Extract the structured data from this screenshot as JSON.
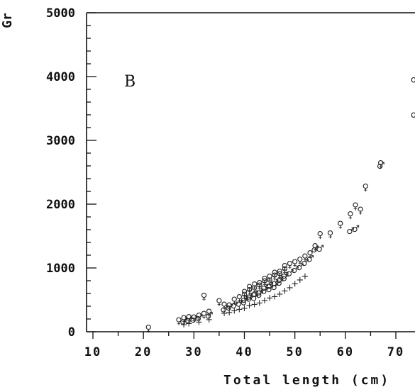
{
  "chart_data": {
    "type": "scatter",
    "panel_label": "B",
    "ylabel": "Gr",
    "xlabel": "Total length (cm)",
    "xlim": [
      10,
      74
    ],
    "ylim": [
      0,
      5000
    ],
    "x_ticks": [
      10,
      20,
      30,
      40,
      50,
      60,
      70
    ],
    "y_ticks": [
      0,
      1000,
      2000,
      3000,
      4000,
      5000
    ],
    "x_tick_labels": [
      "10",
      "20",
      "30",
      "40",
      "50",
      "60",
      "70"
    ],
    "y_tick_labels": [
      "0",
      "1000",
      "2000",
      "3000",
      "4000",
      "5000"
    ],
    "grid": false,
    "series": [
      {
        "name": "♀",
        "marker": "♀",
        "points": [
          [
            21,
            60
          ],
          [
            27,
            180
          ],
          [
            28,
            210
          ],
          [
            29,
            230
          ],
          [
            30,
            220
          ],
          [
            31,
            250
          ],
          [
            32,
            560
          ],
          [
            32,
            280
          ],
          [
            33,
            310
          ],
          [
            35,
            480
          ],
          [
            36,
            420
          ],
          [
            37,
            410
          ],
          [
            38,
            500
          ],
          [
            39,
            540
          ],
          [
            40,
            580
          ],
          [
            40,
            620
          ],
          [
            41,
            650
          ],
          [
            41,
            700
          ],
          [
            42,
            680
          ],
          [
            42,
            740
          ],
          [
            43,
            720
          ],
          [
            43,
            760
          ],
          [
            44,
            790
          ],
          [
            44,
            830
          ],
          [
            45,
            800
          ],
          [
            45,
            860
          ],
          [
            46,
            880
          ],
          [
            46,
            920
          ],
          [
            47,
            940
          ],
          [
            47,
            900
          ],
          [
            48,
            980
          ],
          [
            48,
            1030
          ],
          [
            49,
            1060
          ],
          [
            50,
            1090
          ],
          [
            51,
            1130
          ],
          [
            52,
            1180
          ],
          [
            53,
            1230
          ],
          [
            54,
            1340
          ],
          [
            55,
            1530
          ],
          [
            57,
            1540
          ],
          [
            59,
            1690
          ],
          [
            61,
            1840
          ],
          [
            62,
            1980
          ],
          [
            63,
            1910
          ],
          [
            64,
            2270
          ],
          [
            67,
            2640
          ]
        ]
      },
      {
        "name": "♂",
        "marker": "♂",
        "points": [
          [
            28,
            170
          ],
          [
            29,
            190
          ],
          [
            30,
            200
          ],
          [
            31,
            220
          ],
          [
            33,
            260
          ],
          [
            36,
            360
          ],
          [
            37,
            390
          ],
          [
            38,
            420
          ],
          [
            39,
            450
          ],
          [
            40,
            470
          ],
          [
            40,
            510
          ],
          [
            41,
            530
          ],
          [
            41,
            560
          ],
          [
            42,
            540
          ],
          [
            42,
            600
          ],
          [
            43,
            590
          ],
          [
            43,
            630
          ],
          [
            44,
            650
          ],
          [
            44,
            700
          ],
          [
            45,
            680
          ],
          [
            45,
            730
          ],
          [
            46,
            710
          ],
          [
            46,
            770
          ],
          [
            47,
            780
          ],
          [
            47,
            820
          ],
          [
            48,
            850
          ],
          [
            48,
            890
          ],
          [
            49,
            930
          ],
          [
            50,
            980
          ],
          [
            51,
            1020
          ],
          [
            52,
            1090
          ],
          [
            53,
            1150
          ],
          [
            54,
            1300
          ],
          [
            55,
            1310
          ],
          [
            61,
            1590
          ],
          [
            62,
            1620
          ],
          [
            67,
            2610
          ]
        ]
      },
      {
        "name": "+",
        "marker": "+",
        "points": [
          [
            28,
            120
          ],
          [
            29,
            140
          ],
          [
            31,
            160
          ],
          [
            33,
            200
          ],
          [
            36,
            300
          ],
          [
            37,
            310
          ],
          [
            38,
            340
          ],
          [
            39,
            360
          ],
          [
            40,
            380
          ],
          [
            41,
            420
          ],
          [
            42,
            440
          ],
          [
            43,
            460
          ],
          [
            44,
            500
          ],
          [
            45,
            540
          ],
          [
            46,
            560
          ],
          [
            47,
            600
          ],
          [
            48,
            650
          ],
          [
            49,
            700
          ],
          [
            50,
            760
          ],
          [
            51,
            820
          ],
          [
            52,
            880
          ]
        ]
      }
    ]
  },
  "right_panel": {
    "fragments": [
      {
        "text": "o",
        "y": 3950
      },
      {
        "text": "o",
        "y": 3400
      }
    ]
  }
}
